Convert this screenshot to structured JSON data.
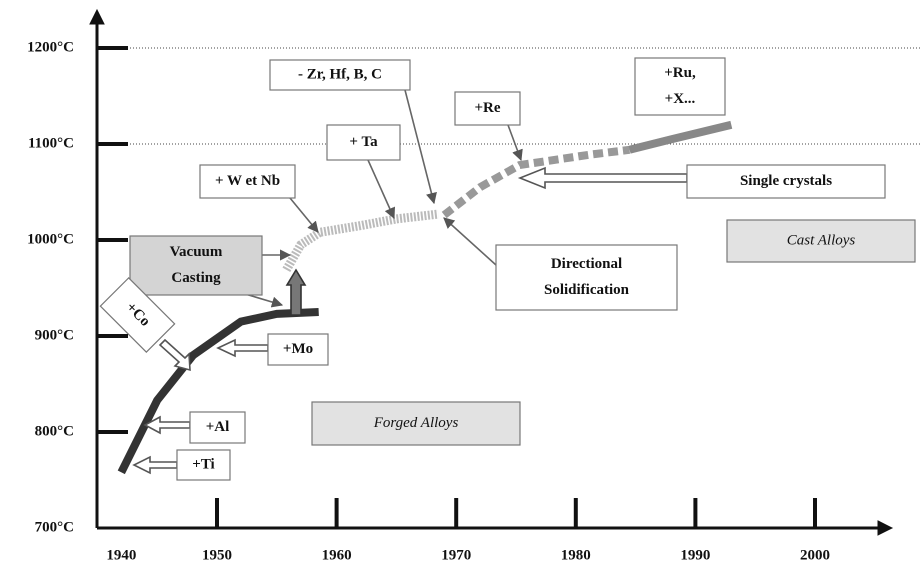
{
  "chart_data": {
    "type": "line",
    "xlim": [
      1940,
      2006
    ],
    "xticks": [
      1940,
      1950,
      1960,
      1970,
      1980,
      1990,
      2000
    ],
    "ylim": [
      700,
      1240
    ],
    "yticks": [
      {
        "value": 700,
        "label": "700°C"
      },
      {
        "value": 800,
        "label": "800°C"
      },
      {
        "value": 900,
        "label": "900°C"
      },
      {
        "value": 1000,
        "label": "1000°C"
      },
      {
        "value": 1100,
        "label": "1100°C"
      },
      {
        "value": 1200,
        "label": "1200°C"
      }
    ],
    "grid_lines": [
      1100,
      1200
    ],
    "series": [
      {
        "color": "#333333",
        "x": [
          1942,
          1945,
          1948,
          1952,
          1955,
          1958.5
        ],
        "values": [
          758,
          833,
          880,
          915,
          923,
          925
        ]
      },
      {
        "color": "#bbbbbb",
        "x": [
          1955.8,
          1957,
          1958.6,
          1962,
          1965,
          1968.5
        ],
        "values": [
          969,
          995,
          1008,
          1015,
          1022,
          1027
        ]
      },
      {
        "color": "#999999",
        "x": [
          1969,
          1972,
          1975.3,
          1981.2,
          1984.5
        ],
        "values": [
          1026,
          1055,
          1078,
          1089,
          1094
        ]
      },
      {
        "color": "#888888",
        "x": [
          1984.5,
          1988,
          1993
        ],
        "values": [
          1094,
          1105,
          1120
        ]
      }
    ],
    "annotations": [
      {
        "lines": [
          "- Zr, Hf, B, C"
        ]
      },
      {
        "lines": [
          "+Re"
        ]
      },
      {
        "lines": [
          "+Ru,",
          "+X..."
        ]
      },
      {
        "lines": [
          "+ Ta"
        ]
      },
      {
        "lines": [
          "+ W et Nb"
        ]
      },
      {
        "lines": [
          "Single crystals"
        ]
      },
      {
        "lines": [
          "Vacuum",
          "Casting"
        ]
      },
      {
        "lines": [
          "Directional",
          "Solidification"
        ]
      },
      {
        "lines": [
          "Cast Alloys"
        ]
      },
      {
        "lines": [
          "+Co"
        ]
      },
      {
        "lines": [
          "+Mo"
        ]
      },
      {
        "lines": [
          "+Al"
        ]
      },
      {
        "lines": [
          "+Ti"
        ]
      },
      {
        "lines": [
          "Forged Alloys"
        ]
      }
    ]
  }
}
